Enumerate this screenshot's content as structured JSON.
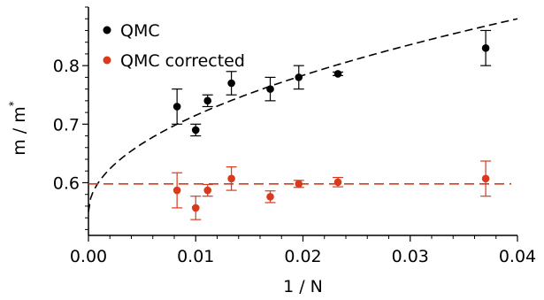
{
  "chart_data": {
    "type": "scatter",
    "xlabel": "1 / N",
    "ylabel_main": "m / m",
    "ylabel_sup": "*",
    "xlim": [
      0.0,
      0.04
    ],
    "ylim": [
      0.51,
      0.9
    ],
    "x_ticks": [
      0.0,
      0.01,
      0.02,
      0.03,
      0.04
    ],
    "x_tick_labels": [
      "0.00",
      "0.01",
      "0.02",
      "0.03",
      "0.04"
    ],
    "y_ticks": [
      0.6,
      0.7,
      0.8
    ],
    "y_tick_labels": [
      "0.6",
      "0.7",
      "0.8"
    ],
    "legend_position": "top-left",
    "grid": false,
    "series": [
      {
        "name": "QMC",
        "color": "#000000",
        "x": [
          0.00826,
          0.01,
          0.01111,
          0.01333,
          0.01695,
          0.01961,
          0.02326,
          0.03704
        ],
        "y": [
          0.73,
          0.69,
          0.74,
          0.77,
          0.76,
          0.78,
          0.786,
          0.83
        ],
        "err": [
          0.03,
          0.01,
          0.01,
          0.02,
          0.02,
          0.02,
          0.003,
          0.03
        ]
      },
      {
        "name": "QMC corrected",
        "color": "#d93a1b",
        "x": [
          0.00826,
          0.01,
          0.01111,
          0.01333,
          0.01695,
          0.01961,
          0.02326,
          0.03704
        ],
        "y": [
          0.587,
          0.557,
          0.587,
          0.607,
          0.576,
          0.598,
          0.601,
          0.607
        ],
        "err": [
          0.03,
          0.02,
          0.01,
          0.02,
          0.01,
          0.006,
          0.008,
          0.03
        ]
      }
    ],
    "fits": [
      {
        "series": "QMC",
        "kind": "sqrt",
        "params": {
          "a": 0.55,
          "b": 1.65
        },
        "color": "#000000"
      },
      {
        "series": "QMC corrected",
        "kind": "constant",
        "params": {
          "c": 0.598
        },
        "color": "#d93a1b"
      }
    ]
  }
}
